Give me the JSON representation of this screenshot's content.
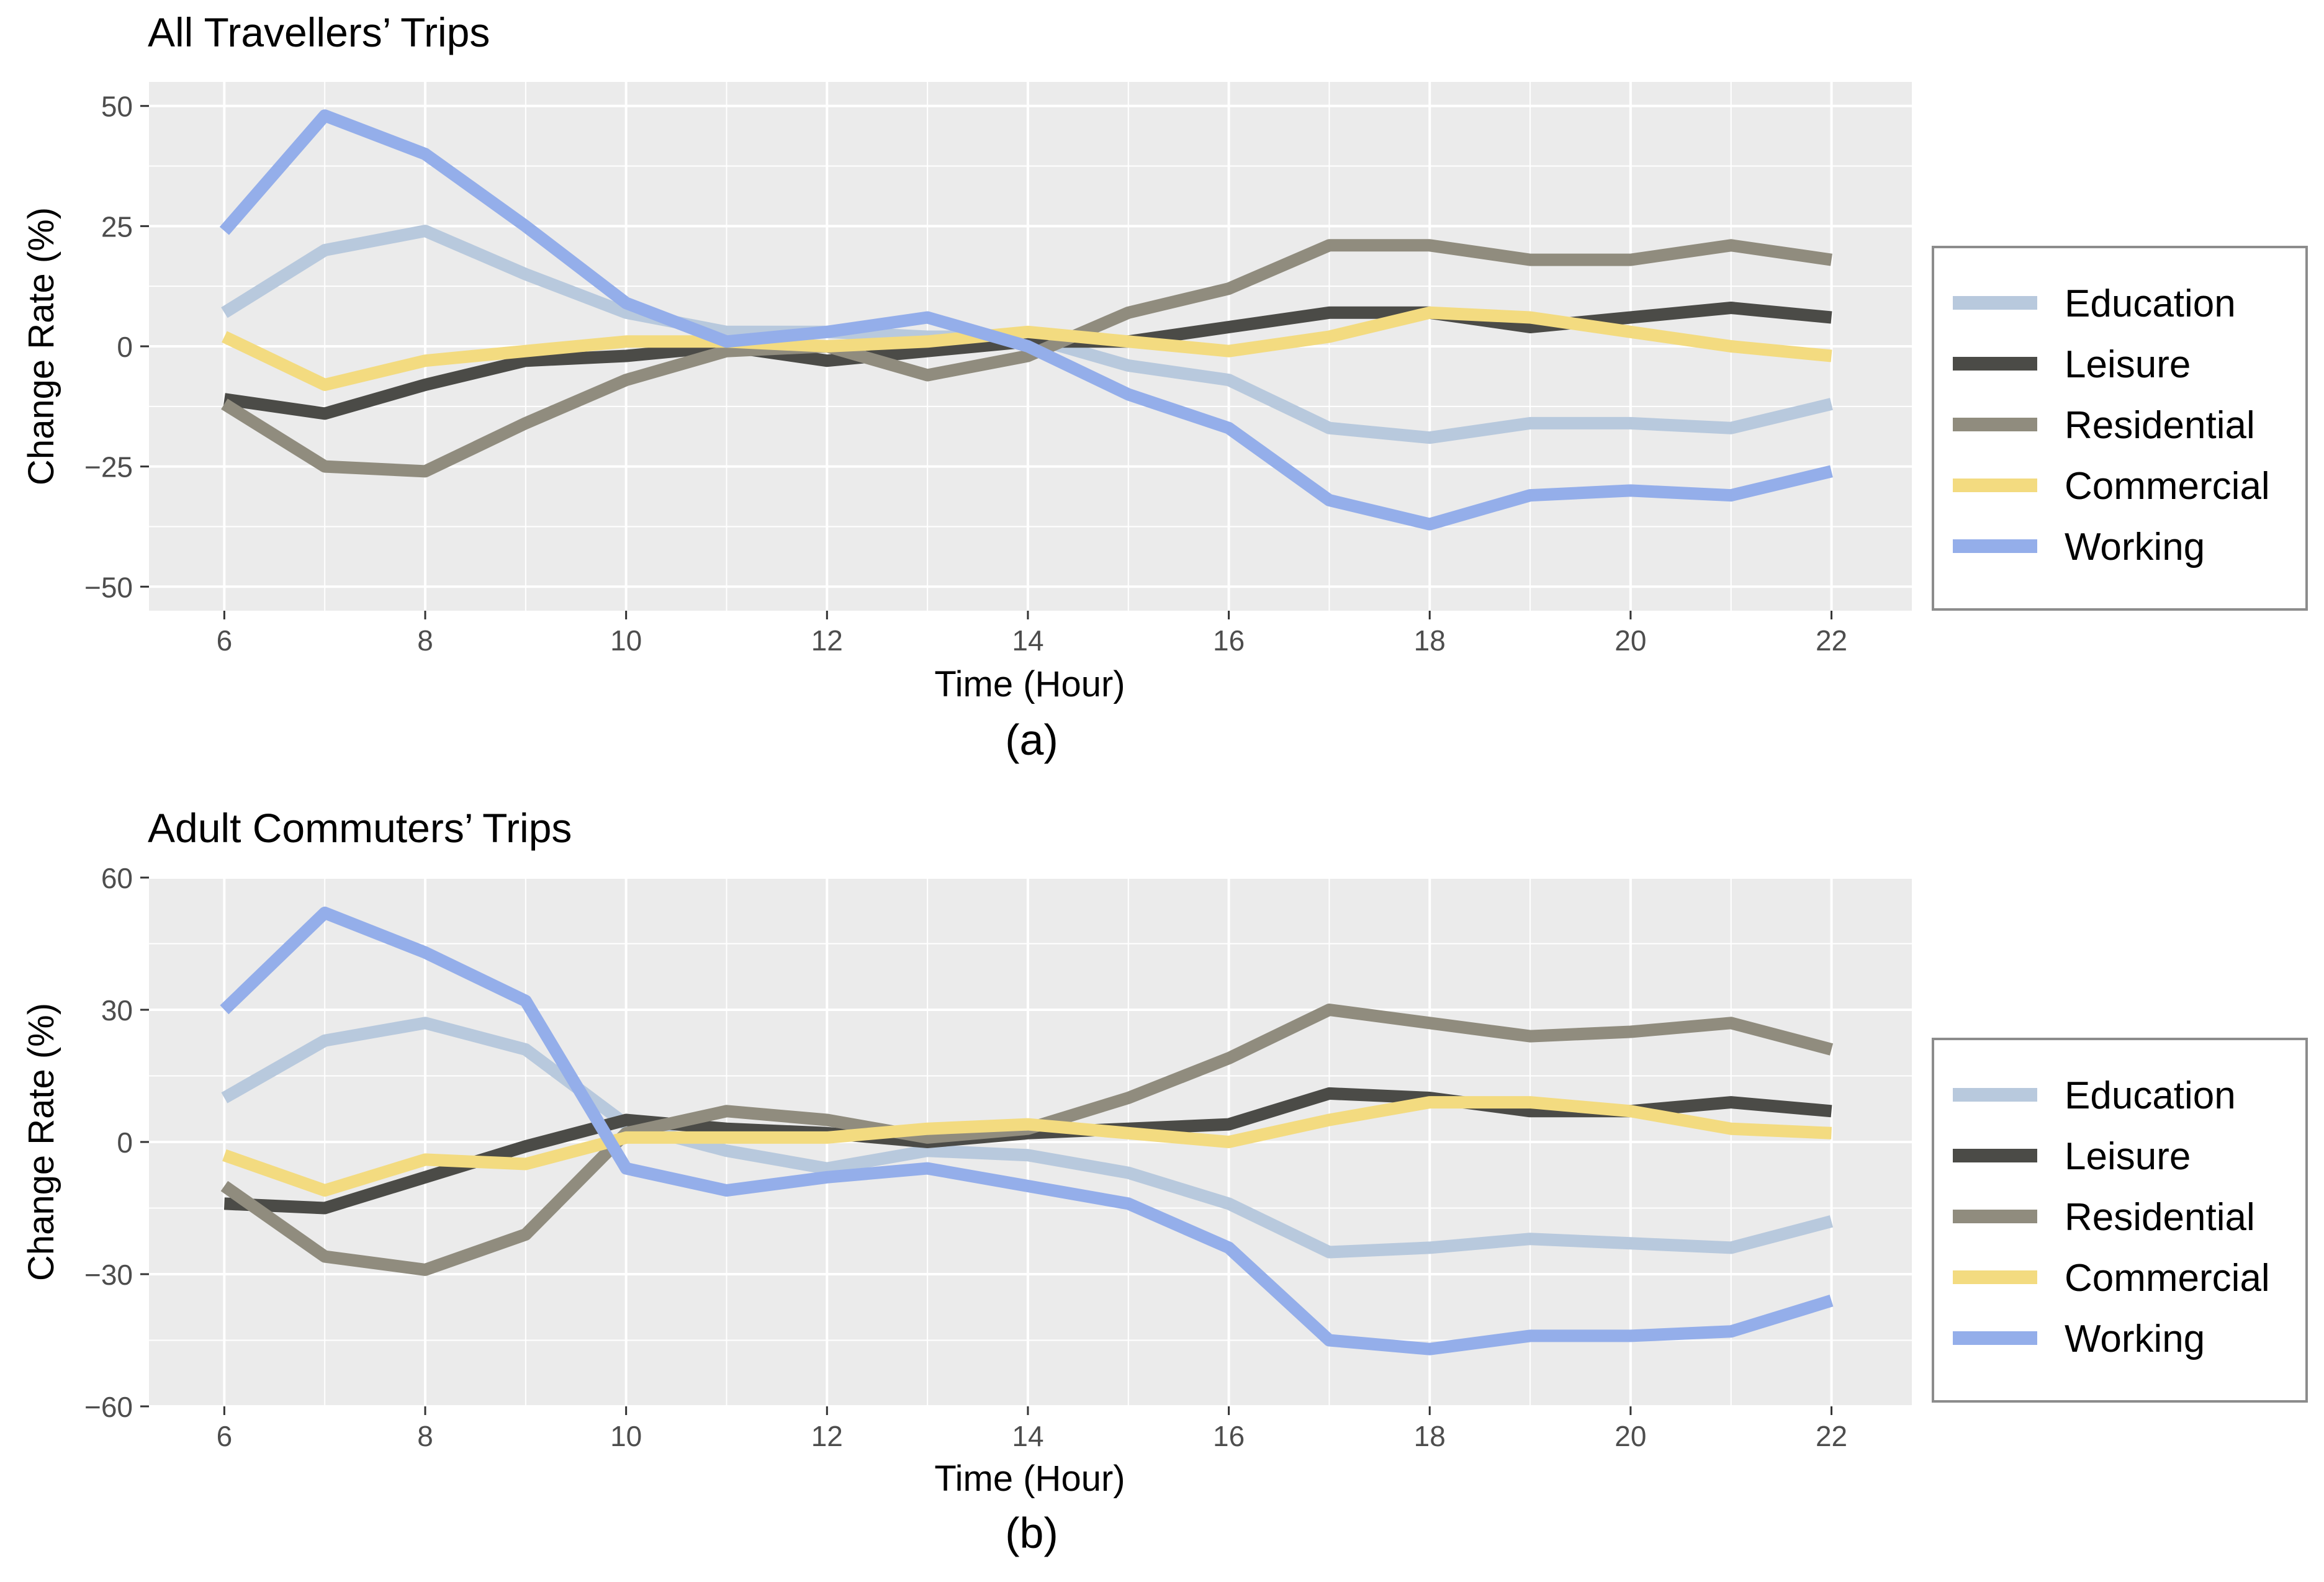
{
  "colors": {
    "panel_bg": "#EBEBEB",
    "grid": "#FFFFFF",
    "text": "#000000",
    "tick_text": "#4D4D4D",
    "legend_border": "#8C8C8C"
  },
  "series_styles": [
    {
      "name": "Education",
      "color": "#B8C9DD"
    },
    {
      "name": "Leisure",
      "color": "#4B4B47"
    },
    {
      "name": "Residential",
      "color": "#908C7E"
    },
    {
      "name": "Commercial",
      "color": "#F3DB80"
    },
    {
      "name": "Working",
      "color": "#94AEEA"
    }
  ],
  "chart_data": [
    {
      "type": "line",
      "title": "All Travellers’ Trips",
      "caption": "(a)",
      "xlabel": "Time (Hour)",
      "ylabel": "Change Rate (%)",
      "x": [
        6,
        7,
        8,
        9,
        10,
        11,
        12,
        13,
        14,
        15,
        16,
        17,
        18,
        19,
        20,
        21,
        22
      ],
      "xlim": [
        5.25,
        22.8
      ],
      "ylim": [
        -55,
        55
      ],
      "xticks": [
        6,
        8,
        10,
        12,
        14,
        16,
        18,
        20,
        22
      ],
      "xtick_labels": [
        "6",
        "8",
        "10",
        "12",
        "14",
        "16",
        "18",
        "20",
        "22"
      ],
      "yticks": [
        -50,
        -25,
        0,
        25,
        50
      ],
      "ytick_labels": [
        "−50",
        "−25",
        "0",
        "25",
        "50"
      ],
      "legend_position": "right",
      "series": [
        {
          "name": "Education",
          "values": [
            7,
            20,
            24,
            15,
            7,
            3,
            3,
            2,
            2,
            -4,
            -7,
            -17,
            -19,
            -16,
            -16,
            -17,
            -12
          ]
        },
        {
          "name": "Leisure",
          "values": [
            -11,
            -14,
            -8,
            -3,
            -2,
            0,
            -3,
            -1,
            1,
            1,
            4,
            7,
            7,
            4,
            6,
            8,
            6
          ]
        },
        {
          "name": "Residential",
          "values": [
            -12,
            -25,
            -26,
            -16,
            -7,
            -1,
            0,
            -6,
            -2,
            7,
            12,
            21,
            21,
            18,
            18,
            21,
            18
          ]
        },
        {
          "name": "Commercial",
          "values": [
            2,
            -8,
            -3,
            -1,
            1,
            1,
            0,
            1,
            3,
            1,
            -1,
            2,
            7,
            6,
            3,
            0,
            -2
          ]
        },
        {
          "name": "Working",
          "values": [
            24,
            48,
            40,
            25,
            9,
            1,
            3,
            6,
            0,
            -10,
            -17,
            -32,
            -37,
            -31,
            -30,
            -31,
            -26
          ]
        }
      ]
    },
    {
      "type": "line",
      "title": "Adult Commuters’ Trips",
      "caption": "(b)",
      "xlabel": "Time (Hour)",
      "ylabel": "Change Rate (%)",
      "x": [
        6,
        7,
        8,
        9,
        10,
        11,
        12,
        13,
        14,
        15,
        16,
        17,
        18,
        19,
        20,
        21,
        22
      ],
      "xlim": [
        5.25,
        22.8
      ],
      "ylim": [
        -60,
        60
      ],
      "xticks": [
        6,
        8,
        10,
        12,
        14,
        16,
        18,
        20,
        22
      ],
      "xtick_labels": [
        "6",
        "8",
        "10",
        "12",
        "14",
        "16",
        "18",
        "20",
        "22"
      ],
      "yticks": [
        -60,
        -30,
        0,
        30,
        60
      ],
      "ytick_labels": [
        "−60",
        "−30",
        "0",
        "30",
        "60"
      ],
      "legend_position": "right",
      "series": [
        {
          "name": "Education",
          "values": [
            10,
            23,
            27,
            21,
            4,
            -2,
            -6,
            -2,
            -3,
            -7,
            -14,
            -25,
            -24,
            -22,
            -23,
            -24,
            -18
          ]
        },
        {
          "name": "Leisure",
          "values": [
            -14,
            -15,
            -8,
            -1,
            5,
            3,
            2,
            0,
            2,
            3,
            4,
            11,
            10,
            7,
            7,
            9,
            7
          ]
        },
        {
          "name": "Residential",
          "values": [
            -10,
            -26,
            -29,
            -21,
            2,
            7,
            5,
            1,
            3,
            10,
            19,
            30,
            27,
            24,
            25,
            27,
            21
          ]
        },
        {
          "name": "Commercial",
          "values": [
            -3,
            -11,
            -4,
            -5,
            1,
            1,
            1,
            3,
            4,
            2,
            0,
            5,
            9,
            9,
            7,
            3,
            2
          ]
        },
        {
          "name": "Working",
          "values": [
            30,
            52,
            43,
            32,
            -6,
            -11,
            -8,
            -6,
            -10,
            -14,
            -24,
            -45,
            -47,
            -44,
            -44,
            -43,
            -36
          ]
        }
      ]
    }
  ]
}
